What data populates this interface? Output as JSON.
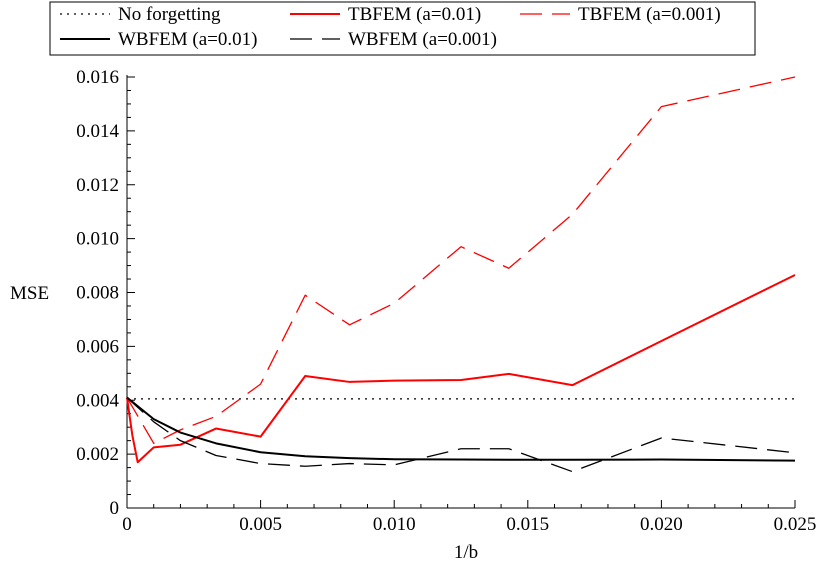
{
  "chart_data": {
    "type": "line",
    "xlabel": "1/b",
    "ylabel": "MSE",
    "xlim": [
      0,
      0.025
    ],
    "ylim": [
      0,
      0.016
    ],
    "x_ticks": [
      "0",
      "0.005",
      "0.010",
      "0.015",
      "0.020",
      "0.025"
    ],
    "y_ticks": [
      "0",
      "0.002",
      "0.004",
      "0.006",
      "0.008",
      "0.010",
      "0.012",
      "0.014",
      "0.016"
    ],
    "x_tick_values": [
      0,
      0.005,
      0.01,
      0.015,
      0.02,
      0.025
    ],
    "y_tick_values": [
      0,
      0.002,
      0.004,
      0.006,
      0.008,
      0.01,
      0.012,
      0.014,
      0.016
    ],
    "grid": false,
    "legend_position": "top",
    "series": [
      {
        "name": "No forgetting",
        "color": "#000000",
        "style": "dotted",
        "x": [
          0,
          0.025
        ],
        "y": [
          0.00405,
          0.00405
        ]
      },
      {
        "name": "TBFEM (a=0.01)",
        "color": "#ff0000",
        "style": "solid",
        "x": [
          0,
          0.0002,
          0.0004,
          0.001,
          0.002,
          0.00333,
          0.005,
          0.00667,
          0.00833,
          0.01,
          0.0125,
          0.01429,
          0.01667,
          0.02,
          0.025
        ],
        "y": [
          0.0041,
          0.0027,
          0.0017,
          0.00225,
          0.00235,
          0.00295,
          0.00265,
          0.0049,
          0.00468,
          0.00473,
          0.00475,
          0.00498,
          0.00456,
          0.0062,
          0.00865
        ]
      },
      {
        "name": "TBFEM (a=0.001)",
        "color": "#ff0000",
        "style": "dashed",
        "x": [
          0,
          0.001,
          0.002,
          0.00333,
          0.005,
          0.00667,
          0.00833,
          0.01,
          0.0125,
          0.01429,
          0.01667,
          0.02,
          0.025
        ],
        "y": [
          0.0041,
          0.0024,
          0.0029,
          0.0034,
          0.0046,
          0.0079,
          0.0068,
          0.0076,
          0.0097,
          0.0089,
          0.0109,
          0.0149,
          0.016
        ]
      },
      {
        "name": "WBFEM (a=0.01)",
        "color": "#000000",
        "style": "solid",
        "x": [
          0,
          0.001,
          0.002,
          0.00333,
          0.005,
          0.00667,
          0.00833,
          0.01,
          0.0125,
          0.01429,
          0.01667,
          0.02,
          0.025
        ],
        "y": [
          0.0041,
          0.0033,
          0.0028,
          0.0024,
          0.00207,
          0.00192,
          0.00185,
          0.00181,
          0.0018,
          0.00179,
          0.00179,
          0.0018,
          0.00176
        ]
      },
      {
        "name": "WBFEM (a=0.001)",
        "color": "#000000",
        "style": "dashed",
        "x": [
          0,
          0.001,
          0.002,
          0.00333,
          0.005,
          0.00667,
          0.00833,
          0.01,
          0.0125,
          0.01429,
          0.01667,
          0.02,
          0.025
        ],
        "y": [
          0.0041,
          0.0032,
          0.0025,
          0.00195,
          0.00165,
          0.00155,
          0.00165,
          0.0016,
          0.0022,
          0.0022,
          0.00135,
          0.0026,
          0.00205
        ]
      }
    ]
  }
}
